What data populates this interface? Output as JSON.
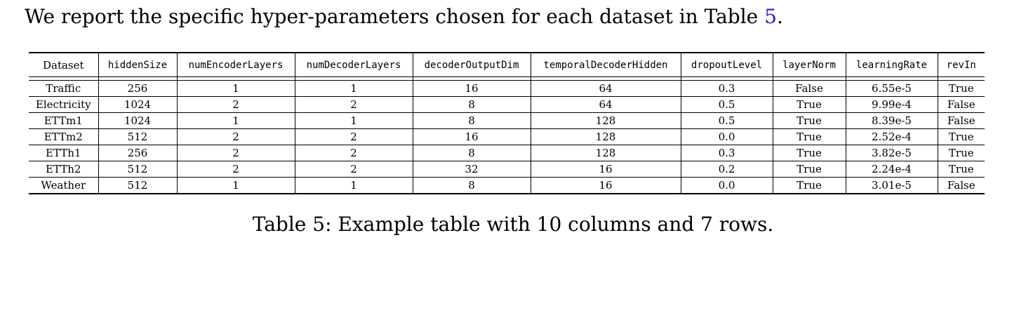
{
  "intro": {
    "text_before": "We report the specific hyper-parameters chosen for each dataset in Table ",
    "link": "5",
    "text_after": "."
  },
  "table": {
    "columns": [
      "Dataset",
      "hiddenSize",
      "numEncoderLayers",
      "numDecoderLayers",
      "decoderOutputDim",
      "temporalDecoderHidden",
      "dropoutLevel",
      "layerNorm",
      "learningRate",
      "revIn"
    ],
    "rows": [
      [
        "Traffic",
        "256",
        "1",
        "1",
        "16",
        "64",
        "0.3",
        "False",
        "6.55e-5",
        "True"
      ],
      [
        "Electricity",
        "1024",
        "2",
        "2",
        "8",
        "64",
        "0.5",
        "True",
        "9.99e-4",
        "False"
      ],
      [
        "ETTm1",
        "1024",
        "1",
        "1",
        "8",
        "128",
        "0.5",
        "True",
        "8.39e-5",
        "False"
      ],
      [
        "ETTm2",
        "512",
        "2",
        "2",
        "16",
        "128",
        "0.0",
        "True",
        "2.52e-4",
        "True"
      ],
      [
        "ETTh1",
        "256",
        "2",
        "2",
        "8",
        "128",
        "0.3",
        "True",
        "3.82e-5",
        "True"
      ],
      [
        "ETTh2",
        "512",
        "2",
        "2",
        "32",
        "16",
        "0.2",
        "True",
        "2.24e-4",
        "True"
      ],
      [
        "Weather",
        "512",
        "1",
        "1",
        "8",
        "16",
        "0.0",
        "True",
        "3.01e-5",
        "False"
      ]
    ]
  },
  "caption": "Table 5: Example table with 10 columns and 7 rows."
}
